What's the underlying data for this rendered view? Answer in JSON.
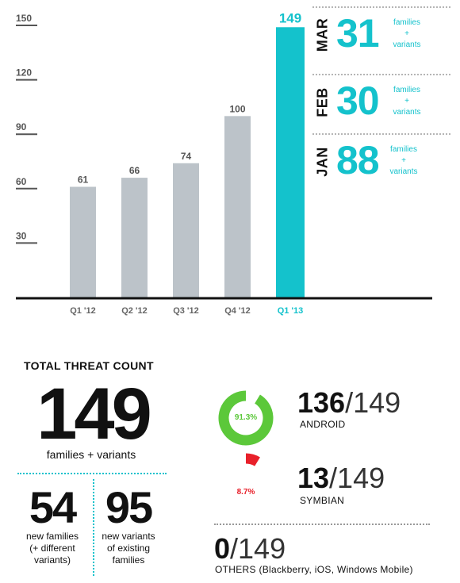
{
  "chart_data": {
    "type": "bar",
    "categories": [
      "Q1 '12",
      "Q2 '12",
      "Q3 '12",
      "Q4 '12",
      "Q1 '13"
    ],
    "values": [
      61,
      66,
      74,
      100,
      149
    ],
    "ylim": [
      0,
      150
    ],
    "yticks": [
      30,
      60,
      90,
      120,
      150
    ],
    "highlight_index": 4,
    "colors": {
      "bar": "#bcc3c9",
      "highlight": "#14c2cc",
      "axis": "#111111",
      "tick": "#555555"
    }
  },
  "months": [
    {
      "name": "MAR",
      "value": "31",
      "note": [
        "families",
        "+",
        "variants"
      ]
    },
    {
      "name": "FEB",
      "value": "30",
      "note": [
        "families",
        "+",
        "variants"
      ]
    },
    {
      "name": "JAN",
      "value": "88",
      "note": [
        "families",
        "+",
        "variants"
      ]
    }
  ],
  "summary": {
    "title": "TOTAL THREAT COUNT",
    "total": "149",
    "total_label": "families + variants",
    "new_families": {
      "value": "54",
      "label": [
        "new families",
        "(+ different",
        "variants)"
      ]
    },
    "new_variants": {
      "value": "95",
      "label": [
        "new variants",
        "of existing",
        "families"
      ]
    }
  },
  "platforms": [
    {
      "count": "136",
      "denominator": "/149",
      "label": "ANDROID",
      "percent": "91.3%",
      "fraction": 0.913,
      "color": "#5cc83a"
    },
    {
      "count": "13",
      "denominator": "/149",
      "label": "SYMBIAN",
      "percent": "8.7%",
      "fraction": 0.087,
      "color": "#e8202a"
    },
    {
      "count": "0",
      "denominator": "/149",
      "label": "OTHERS (Blackberry, iOS, Windows Mobile)"
    }
  ]
}
